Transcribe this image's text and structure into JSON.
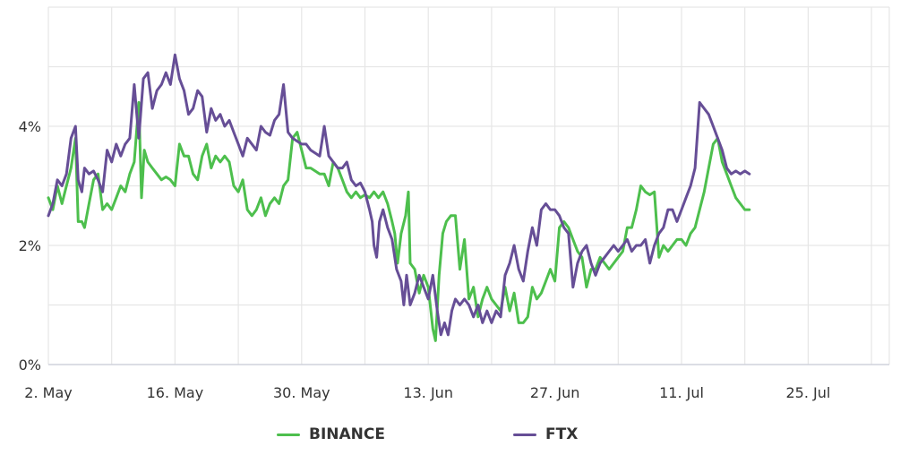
{
  "chart_data": {
    "type": "line",
    "x_ticks": [
      {
        "label": "2. May",
        "day": 0
      },
      {
        "label": "16. May",
        "day": 14
      },
      {
        "label": "30. May",
        "day": 28
      },
      {
        "label": "13. Jun",
        "day": 42
      },
      {
        "label": "27. Jun",
        "day": 56
      },
      {
        "label": "11. Jul",
        "day": 70
      },
      {
        "label": "25. Jul",
        "day": 84
      }
    ],
    "y_ticks": [
      {
        "label": "0%",
        "value": 0
      },
      {
        "label": "2%",
        "value": 2
      },
      {
        "label": "4%",
        "value": 4
      }
    ],
    "xlim": [
      "2. May",
      "3. Aug"
    ],
    "ylim": [
      0,
      6
    ],
    "grid": {
      "x": true,
      "y": true
    },
    "legend": "bottom-center",
    "series": [
      {
        "name": "BINANCE",
        "color": "#4dbf4d",
        "points": [
          [
            0,
            2.8
          ],
          [
            0.5,
            2.6
          ],
          [
            1,
            3.0
          ],
          [
            1.5,
            2.7
          ],
          [
            2,
            3.0
          ],
          [
            2.5,
            3.3
          ],
          [
            3,
            3.8
          ],
          [
            3.3,
            2.4
          ],
          [
            3.7,
            2.4
          ],
          [
            4,
            2.3
          ],
          [
            4.5,
            2.7
          ],
          [
            5,
            3.1
          ],
          [
            5.5,
            3.2
          ],
          [
            6,
            2.6
          ],
          [
            6.5,
            2.7
          ],
          [
            7,
            2.6
          ],
          [
            7.5,
            2.8
          ],
          [
            8,
            3.0
          ],
          [
            8.5,
            2.9
          ],
          [
            9,
            3.2
          ],
          [
            9.5,
            3.4
          ],
          [
            10,
            4.4
          ],
          [
            10.3,
            2.8
          ],
          [
            10.6,
            3.6
          ],
          [
            11,
            3.4
          ],
          [
            11.5,
            3.3
          ],
          [
            12,
            3.2
          ],
          [
            12.5,
            3.1
          ],
          [
            13,
            3.15
          ],
          [
            13.5,
            3.1
          ],
          [
            14,
            3.0
          ],
          [
            14.5,
            3.7
          ],
          [
            15,
            3.5
          ],
          [
            15.5,
            3.5
          ],
          [
            16,
            3.2
          ],
          [
            16.5,
            3.1
          ],
          [
            17,
            3.5
          ],
          [
            17.5,
            3.7
          ],
          [
            18,
            3.3
          ],
          [
            18.5,
            3.5
          ],
          [
            19,
            3.4
          ],
          [
            19.5,
            3.5
          ],
          [
            20,
            3.4
          ],
          [
            20.5,
            3.0
          ],
          [
            21,
            2.9
          ],
          [
            21.5,
            3.1
          ],
          [
            22,
            2.6
          ],
          [
            22.5,
            2.5
          ],
          [
            23,
            2.6
          ],
          [
            23.5,
            2.8
          ],
          [
            24,
            2.5
          ],
          [
            24.5,
            2.7
          ],
          [
            25,
            2.8
          ],
          [
            25.5,
            2.7
          ],
          [
            26,
            3.0
          ],
          [
            26.5,
            3.1
          ],
          [
            27,
            3.8
          ],
          [
            27.5,
            3.9
          ],
          [
            28,
            3.6
          ],
          [
            28.5,
            3.3
          ],
          [
            29,
            3.3
          ],
          [
            29.5,
            3.25
          ],
          [
            30,
            3.2
          ],
          [
            30.5,
            3.2
          ],
          [
            31,
            3.0
          ],
          [
            31.5,
            3.4
          ],
          [
            32,
            3.3
          ],
          [
            32.5,
            3.1
          ],
          [
            33,
            2.9
          ],
          [
            33.5,
            2.8
          ],
          [
            34,
            2.9
          ],
          [
            34.5,
            2.8
          ],
          [
            35,
            2.85
          ],
          [
            35.5,
            2.8
          ],
          [
            36,
            2.9
          ],
          [
            36.5,
            2.8
          ],
          [
            37,
            2.9
          ],
          [
            37.5,
            2.7
          ],
          [
            38,
            2.4
          ],
          [
            38.3,
            2.2
          ],
          [
            38.6,
            1.7
          ],
          [
            39,
            2.2
          ],
          [
            39.5,
            2.5
          ],
          [
            39.8,
            2.9
          ],
          [
            40,
            1.7
          ],
          [
            40.5,
            1.6
          ],
          [
            41,
            1.2
          ],
          [
            41.5,
            1.5
          ],
          [
            42,
            1.3
          ],
          [
            42.5,
            0.6
          ],
          [
            42.8,
            0.4
          ],
          [
            43.2,
            1.5
          ],
          [
            43.6,
            2.2
          ],
          [
            44,
            2.4
          ],
          [
            44.5,
            2.5
          ],
          [
            45,
            2.5
          ],
          [
            45.5,
            1.6
          ],
          [
            46,
            2.1
          ],
          [
            46.5,
            1.1
          ],
          [
            47,
            1.3
          ],
          [
            47.5,
            0.8
          ],
          [
            48,
            1.1
          ],
          [
            48.5,
            1.3
          ],
          [
            49,
            1.1
          ],
          [
            49.5,
            1.0
          ],
          [
            50,
            0.9
          ],
          [
            50.5,
            1.3
          ],
          [
            51,
            0.9
          ],
          [
            51.5,
            1.2
          ],
          [
            52,
            0.7
          ],
          [
            52.5,
            0.7
          ],
          [
            53,
            0.8
          ],
          [
            53.5,
            1.3
          ],
          [
            54,
            1.1
          ],
          [
            54.5,
            1.2
          ],
          [
            55,
            1.4
          ],
          [
            55.5,
            1.6
          ],
          [
            56,
            1.4
          ],
          [
            56.5,
            2.3
          ],
          [
            57,
            2.4
          ],
          [
            57.5,
            2.3
          ],
          [
            58,
            2.1
          ],
          [
            58.5,
            1.9
          ],
          [
            59,
            1.8
          ],
          [
            59.5,
            1.3
          ],
          [
            60,
            1.6
          ],
          [
            60.5,
            1.6
          ],
          [
            61,
            1.8
          ],
          [
            61.5,
            1.7
          ],
          [
            62,
            1.6
          ],
          [
            62.5,
            1.7
          ],
          [
            63,
            1.8
          ],
          [
            63.5,
            1.9
          ],
          [
            64,
            2.3
          ],
          [
            64.5,
            2.3
          ],
          [
            65,
            2.6
          ],
          [
            65.5,
            3.0
          ],
          [
            66,
            2.9
          ],
          [
            66.5,
            2.85
          ],
          [
            67,
            2.9
          ],
          [
            67.5,
            1.8
          ],
          [
            68,
            2.0
          ],
          [
            68.5,
            1.9
          ],
          [
            69,
            2.0
          ],
          [
            69.5,
            2.1
          ],
          [
            70,
            2.1
          ],
          [
            70.5,
            2.0
          ],
          [
            71,
            2.2
          ],
          [
            71.5,
            2.3
          ],
          [
            72,
            2.6
          ],
          [
            72.5,
            2.9
          ],
          [
            73,
            3.3
          ],
          [
            73.5,
            3.7
          ],
          [
            74,
            3.8
          ],
          [
            74.5,
            3.4
          ],
          [
            75,
            3.2
          ],
          [
            75.5,
            3.0
          ],
          [
            76,
            2.8
          ],
          [
            76.5,
            2.7
          ],
          [
            77,
            2.6
          ],
          [
            77.5,
            2.6
          ]
        ]
      },
      {
        "name": "FTX",
        "color": "#664e96",
        "points": [
          [
            0,
            2.5
          ],
          [
            0.5,
            2.7
          ],
          [
            1,
            3.1
          ],
          [
            1.5,
            3.0
          ],
          [
            2,
            3.2
          ],
          [
            2.5,
            3.8
          ],
          [
            3,
            4.0
          ],
          [
            3.3,
            3.1
          ],
          [
            3.7,
            2.9
          ],
          [
            4,
            3.3
          ],
          [
            4.5,
            3.2
          ],
          [
            5,
            3.25
          ],
          [
            5.5,
            3.1
          ],
          [
            6,
            2.9
          ],
          [
            6.5,
            3.6
          ],
          [
            7,
            3.4
          ],
          [
            7.5,
            3.7
          ],
          [
            8,
            3.5
          ],
          [
            8.5,
            3.7
          ],
          [
            9,
            3.8
          ],
          [
            9.5,
            4.7
          ],
          [
            10,
            3.8
          ],
          [
            10.5,
            4.8
          ],
          [
            11,
            4.9
          ],
          [
            11.5,
            4.3
          ],
          [
            12,
            4.6
          ],
          [
            12.5,
            4.7
          ],
          [
            13,
            4.9
          ],
          [
            13.5,
            4.7
          ],
          [
            14,
            5.2
          ],
          [
            14.5,
            4.8
          ],
          [
            15,
            4.6
          ],
          [
            15.5,
            4.2
          ],
          [
            16,
            4.3
          ],
          [
            16.5,
            4.6
          ],
          [
            17,
            4.5
          ],
          [
            17.5,
            3.9
          ],
          [
            18,
            4.3
          ],
          [
            18.5,
            4.1
          ],
          [
            19,
            4.2
          ],
          [
            19.5,
            4.0
          ],
          [
            20,
            4.1
          ],
          [
            20.5,
            3.9
          ],
          [
            21,
            3.7
          ],
          [
            21.5,
            3.5
          ],
          [
            22,
            3.8
          ],
          [
            22.5,
            3.7
          ],
          [
            23,
            3.6
          ],
          [
            23.5,
            4.0
          ],
          [
            24,
            3.9
          ],
          [
            24.5,
            3.85
          ],
          [
            25,
            4.1
          ],
          [
            25.5,
            4.2
          ],
          [
            26,
            4.7
          ],
          [
            26.5,
            3.9
          ],
          [
            27,
            3.8
          ],
          [
            27.5,
            3.75
          ],
          [
            28,
            3.7
          ],
          [
            28.5,
            3.7
          ],
          [
            29,
            3.6
          ],
          [
            29.5,
            3.55
          ],
          [
            30,
            3.5
          ],
          [
            30.5,
            4.0
          ],
          [
            31,
            3.5
          ],
          [
            31.5,
            3.4
          ],
          [
            32,
            3.3
          ],
          [
            32.5,
            3.3
          ],
          [
            33,
            3.4
          ],
          [
            33.5,
            3.1
          ],
          [
            34,
            3.0
          ],
          [
            34.5,
            3.05
          ],
          [
            35,
            2.9
          ],
          [
            35.5,
            2.6
          ],
          [
            35.8,
            2.4
          ],
          [
            36,
            2.0
          ],
          [
            36.3,
            1.8
          ],
          [
            36.6,
            2.4
          ],
          [
            37,
            2.6
          ],
          [
            37.5,
            2.3
          ],
          [
            38,
            2.1
          ],
          [
            38.5,
            1.6
          ],
          [
            39,
            1.4
          ],
          [
            39.3,
            1.0
          ],
          [
            39.6,
            1.5
          ],
          [
            40,
            1.0
          ],
          [
            40.5,
            1.2
          ],
          [
            41,
            1.5
          ],
          [
            41.5,
            1.3
          ],
          [
            42,
            1.1
          ],
          [
            42.5,
            1.5
          ],
          [
            43,
            0.9
          ],
          [
            43.4,
            0.5
          ],
          [
            43.8,
            0.7
          ],
          [
            44.2,
            0.5
          ],
          [
            44.6,
            0.9
          ],
          [
            45,
            1.1
          ],
          [
            45.5,
            1.0
          ],
          [
            46,
            1.1
          ],
          [
            46.5,
            1.0
          ],
          [
            47,
            0.8
          ],
          [
            47.5,
            1.0
          ],
          [
            48,
            0.7
          ],
          [
            48.5,
            0.9
          ],
          [
            49,
            0.7
          ],
          [
            49.5,
            0.9
          ],
          [
            50,
            0.8
          ],
          [
            50.5,
            1.5
          ],
          [
            51,
            1.7
          ],
          [
            51.5,
            2.0
          ],
          [
            52,
            1.6
          ],
          [
            52.5,
            1.4
          ],
          [
            53,
            1.9
          ],
          [
            53.5,
            2.3
          ],
          [
            54,
            2.0
          ],
          [
            54.5,
            2.6
          ],
          [
            55,
            2.7
          ],
          [
            55.5,
            2.6
          ],
          [
            56,
            2.6
          ],
          [
            56.5,
            2.5
          ],
          [
            57,
            2.3
          ],
          [
            57.5,
            2.2
          ],
          [
            58,
            1.3
          ],
          [
            58.5,
            1.7
          ],
          [
            59,
            1.9
          ],
          [
            59.5,
            2.0
          ],
          [
            60,
            1.7
          ],
          [
            60.5,
            1.5
          ],
          [
            61,
            1.7
          ],
          [
            61.5,
            1.8
          ],
          [
            62,
            1.9
          ],
          [
            62.5,
            2.0
          ],
          [
            63,
            1.9
          ],
          [
            63.5,
            2.0
          ],
          [
            64,
            2.1
          ],
          [
            64.5,
            1.9
          ],
          [
            65,
            2.0
          ],
          [
            65.5,
            2.0
          ],
          [
            66,
            2.1
          ],
          [
            66.5,
            1.7
          ],
          [
            67,
            2.0
          ],
          [
            67.5,
            2.2
          ],
          [
            68,
            2.3
          ],
          [
            68.5,
            2.6
          ],
          [
            69,
            2.6
          ],
          [
            69.5,
            2.4
          ],
          [
            70,
            2.6
          ],
          [
            70.5,
            2.8
          ],
          [
            71,
            3.0
          ],
          [
            71.5,
            3.3
          ],
          [
            72,
            4.4
          ],
          [
            72.5,
            4.3
          ],
          [
            73,
            4.2
          ],
          [
            73.5,
            4.0
          ],
          [
            74,
            3.8
          ],
          [
            74.5,
            3.6
          ],
          [
            75,
            3.3
          ],
          [
            75.5,
            3.2
          ],
          [
            76,
            3.25
          ],
          [
            76.5,
            3.2
          ],
          [
            77,
            3.25
          ],
          [
            77.5,
            3.2
          ]
        ]
      }
    ]
  }
}
